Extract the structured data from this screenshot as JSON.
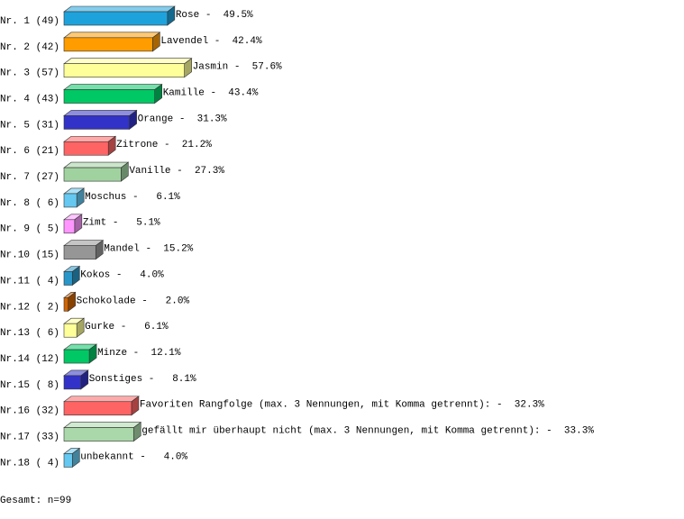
{
  "chart_data": {
    "type": "bar3d",
    "categories": [
      "Nr. 1 (49)",
      "Nr. 2 (42)",
      "Nr. 3 (57)",
      "Nr. 4 (43)",
      "Nr. 5 (31)",
      "Nr. 6 (21)",
      "Nr. 7 (27)",
      "Nr. 8 ( 6)",
      "Nr. 9 ( 5)",
      "Nr.10 (15)",
      "Nr.11 ( 4)",
      "Nr.12 ( 2)",
      "Nr.13 ( 6)",
      "Nr.14 (12)",
      "Nr.15 ( 8)",
      "Nr.16 (32)",
      "Nr.17 (33)",
      "Nr.18 ( 4)"
    ],
    "values": [
      49.5,
      42.4,
      57.6,
      43.4,
      31.3,
      21.2,
      27.3,
      6.1,
      5.1,
      15.2,
      4.0,
      2.0,
      6.1,
      12.1,
      8.1,
      32.3,
      33.3,
      4.0
    ],
    "value_labels": [
      "Rose -  49.5%",
      "Lavendel -  42.4%",
      "Jasmin -  57.6%",
      "Kamille -  43.4%",
      "Orange -  31.3%",
      "Zitrone -  21.2%",
      "Vanille -  27.3%",
      "Moschus -   6.1%",
      "Zimt -   5.1%",
      "Mandel -  15.2%",
      "Kokos -   4.0%",
      "Schokolade -   2.0%",
      "Gurke -   6.1%",
      "Minze -  12.1%",
      "Sonstiges -   8.1%",
      "Favoriten Rangfolge (max. 3 Nennungen, mit Komma getrennt): -  32.3%",
      "gefällt mir überhaupt nicht (max. 3 Nennungen, mit Komma getrennt): -  33.3%",
      "unbekannt -   4.0%"
    ],
    "colors": [
      "#1ea2dc",
      "#ff9c00",
      "#ffff99",
      "#00c864",
      "#3232c8",
      "#ff6464",
      "#a0d2a0",
      "#64c8f0",
      "#ff96ff",
      "#969696",
      "#2896c8",
      "#d26400",
      "#ffff99",
      "#00c864",
      "#3232c8",
      "#ff6464",
      "#aad8aa",
      "#64c8f0"
    ],
    "footer": "Gesamt: n=99"
  }
}
